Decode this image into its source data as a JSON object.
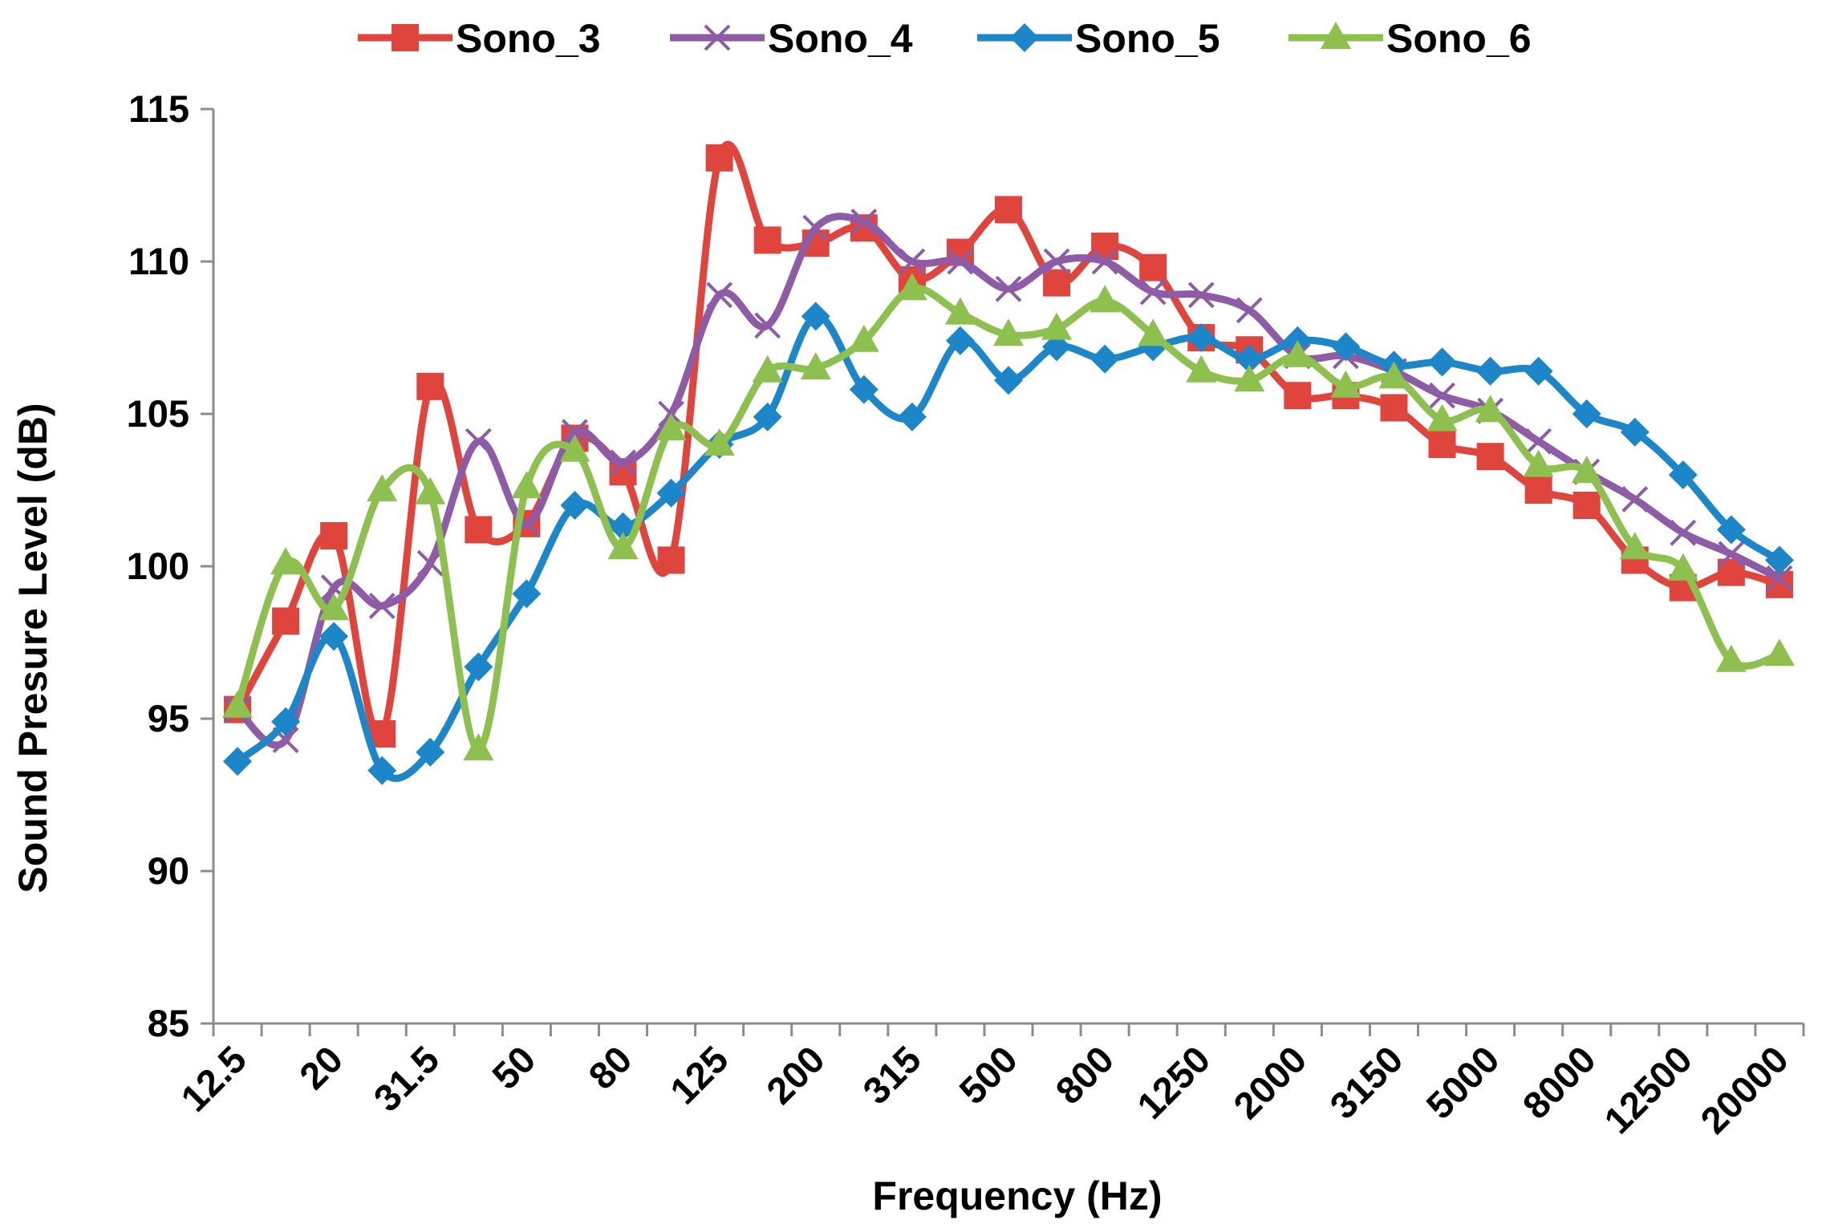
{
  "chart_data": {
    "type": "line",
    "title": "",
    "xlabel": "Frequency (Hz)",
    "ylabel": "Sound Presure Level (dB)",
    "ylim": [
      85,
      115
    ],
    "yticks": [
      85,
      90,
      95,
      100,
      105,
      110,
      115
    ],
    "grid": false,
    "legend_position": "top",
    "x": [
      "12.5",
      "16",
      "20",
      "25",
      "31.5",
      "40",
      "50",
      "63",
      "80",
      "100",
      "125",
      "160",
      "200",
      "250",
      "315",
      "400",
      "500",
      "630",
      "800",
      "1000",
      "1250",
      "1600",
      "2000",
      "2500",
      "3150",
      "4000",
      "5000",
      "6300",
      "8000",
      "10000",
      "12500",
      "16000",
      "20000"
    ],
    "x_tick_labels": [
      "12.5",
      "20",
      "31.5",
      "50",
      "80",
      "125",
      "200",
      "315",
      "500",
      "800",
      "1250",
      "2000",
      "3150",
      "5000",
      "8000",
      "12500",
      "20000"
    ],
    "series": [
      {
        "name": "Sono_3",
        "color": "#E0453D",
        "marker": "square",
        "values": [
          95.3,
          98.2,
          101.0,
          94.5,
          105.9,
          101.2,
          101.4,
          104.2,
          103.1,
          100.2,
          113.4,
          110.7,
          110.6,
          111.1,
          109.4,
          110.3,
          111.7,
          109.3,
          110.5,
          109.8,
          107.5,
          107.1,
          105.6,
          105.6,
          105.2,
          104.0,
          103.6,
          102.5,
          102.0,
          100.2,
          99.3,
          99.8,
          99.4
        ]
      },
      {
        "name": "Sono_4",
        "color": "#8E5BA6",
        "marker": "x",
        "values": [
          95.3,
          94.3,
          99.3,
          98.7,
          100.1,
          104.1,
          101.4,
          104.4,
          103.4,
          105.0,
          108.9,
          107.9,
          111.1,
          111.3,
          110.0,
          110.0,
          109.1,
          110.0,
          110.0,
          109.0,
          108.9,
          108.4,
          106.9,
          106.9,
          106.4,
          105.6,
          105.1,
          104.1,
          103.1,
          102.2,
          101.1,
          100.4,
          99.6
        ]
      },
      {
        "name": "Sono_5",
        "color": "#1C86C8",
        "marker": "diamond",
        "values": [
          93.6,
          94.9,
          97.7,
          93.3,
          93.9,
          96.7,
          99.1,
          102.0,
          101.3,
          102.4,
          104.0,
          104.9,
          108.2,
          105.8,
          104.9,
          107.4,
          106.1,
          107.2,
          106.8,
          107.2,
          107.5,
          106.8,
          107.4,
          107.2,
          106.6,
          106.7,
          106.4,
          106.4,
          105.0,
          104.4,
          103.0,
          101.2,
          100.2
        ]
      },
      {
        "name": "Sono_6",
        "color": "#8DC04E",
        "marker": "triangle",
        "values": [
          95.4,
          100.1,
          98.6,
          102.5,
          102.4,
          94.0,
          102.6,
          103.8,
          100.6,
          104.5,
          104.0,
          106.4,
          106.5,
          107.4,
          109.1,
          108.3,
          107.6,
          107.8,
          108.7,
          107.6,
          106.4,
          106.1,
          106.9,
          105.9,
          106.2,
          104.8,
          105.1,
          103.3,
          103.1,
          100.6,
          99.9,
          96.9,
          97.1
        ]
      }
    ]
  }
}
